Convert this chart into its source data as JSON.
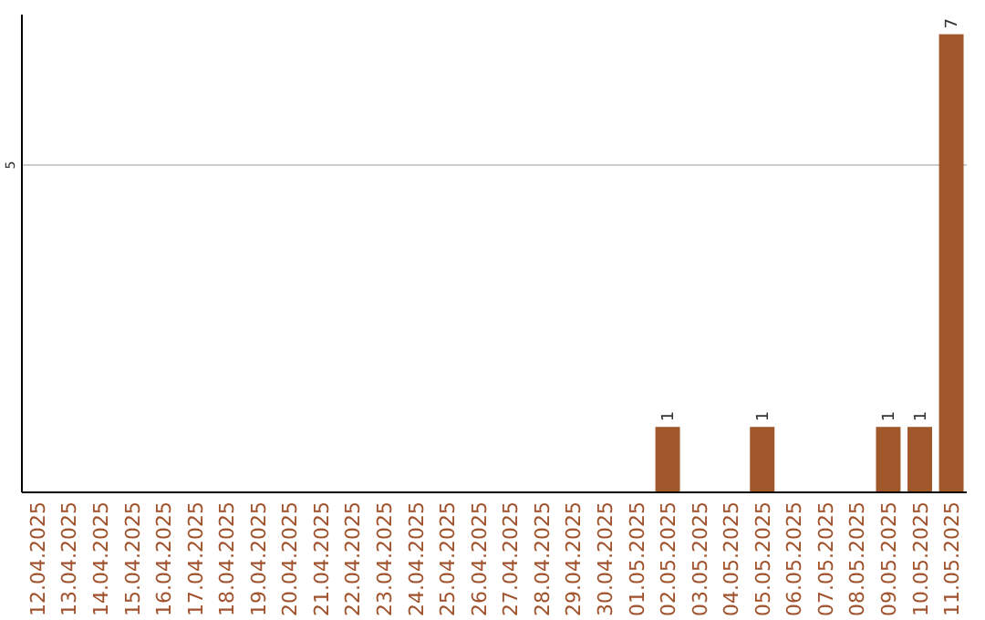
{
  "chart_data": {
    "type": "bar",
    "categories": [
      "12.04.2025",
      "13.04.2025",
      "14.04.2025",
      "15.04.2025",
      "16.04.2025",
      "17.04.2025",
      "18.04.2025",
      "19.04.2025",
      "20.04.2025",
      "21.04.2025",
      "22.04.2025",
      "23.04.2025",
      "24.04.2025",
      "25.04.2025",
      "26.04.2025",
      "27.04.2025",
      "28.04.2025",
      "29.04.2025",
      "30.04.2025",
      "01.05.2025",
      "02.05.2025",
      "03.05.2025",
      "04.05.2025",
      "05.05.2025",
      "06.05.2025",
      "07.05.2025",
      "08.05.2025",
      "09.05.2025",
      "10.05.2025",
      "11.05.2025"
    ],
    "values": [
      null,
      null,
      null,
      null,
      null,
      null,
      null,
      null,
      null,
      null,
      null,
      null,
      null,
      null,
      null,
      null,
      null,
      null,
      null,
      null,
      1,
      null,
      null,
      1,
      null,
      null,
      null,
      1,
      1,
      7
    ],
    "color": "#a0582a",
    "ylim": [
      0,
      7.3
    ],
    "yticks": [
      5
    ],
    "grid": "y",
    "data_labels": true
  }
}
